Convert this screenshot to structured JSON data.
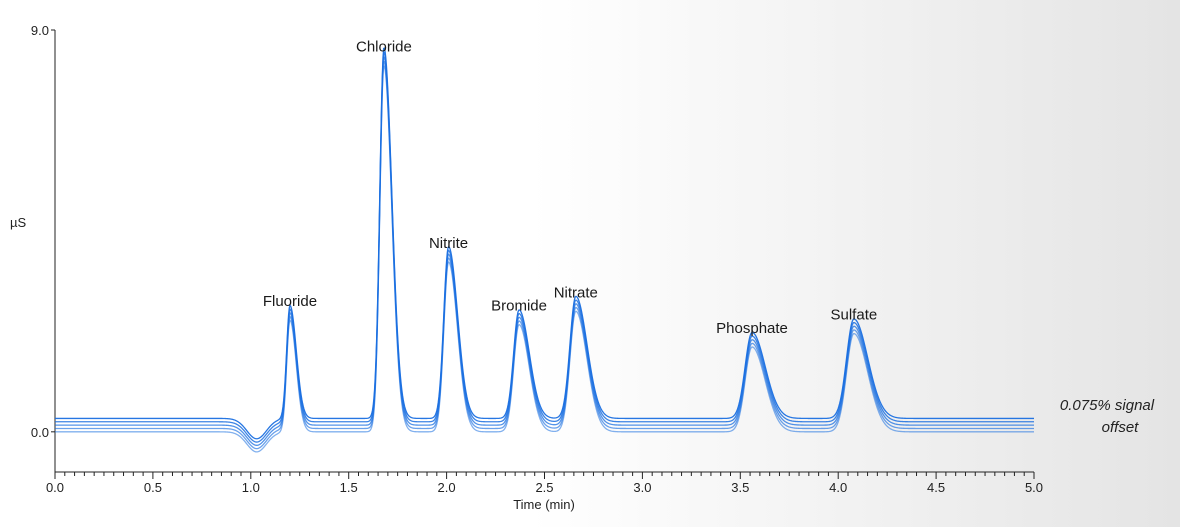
{
  "chart_data": {
    "type": "line",
    "title": "",
    "xlabel": "Time (min)",
    "ylabel": "µS",
    "xlim": [
      0.0,
      5.0
    ],
    "ylim": [
      -0.9,
      9.0
    ],
    "x_ticks": [
      "0.0",
      "0.5",
      "1.0",
      "1.5",
      "2.0",
      "2.5",
      "3.0",
      "3.5",
      "4.0",
      "4.5",
      "5.0"
    ],
    "y_ticks": [
      "9.0",
      "0.0"
    ],
    "grid": false,
    "note": {
      "line1": "0.075% signal",
      "line2": "offset"
    },
    "baseline": 0.0,
    "trace_offsets": [
      0.0,
      0.075,
      0.15,
      0.225,
      0.3
    ],
    "trace_color": "#1a6fe0",
    "dip": {
      "time": 1.03,
      "depth": -0.45
    },
    "peaks": [
      {
        "name": "Fluoride",
        "time": 1.2,
        "height": 2.5
      },
      {
        "name": "Chloride",
        "time": 1.68,
        "height": 8.2
      },
      {
        "name": "Nitrite",
        "time": 2.01,
        "height": 3.8
      },
      {
        "name": "Bromide",
        "time": 2.37,
        "height": 2.4
      },
      {
        "name": "Nitrate",
        "time": 2.66,
        "height": 2.7
      },
      {
        "name": "Phosphate",
        "time": 3.56,
        "height": 1.9
      },
      {
        "name": "Sulfate",
        "time": 4.08,
        "height": 2.2
      }
    ]
  }
}
